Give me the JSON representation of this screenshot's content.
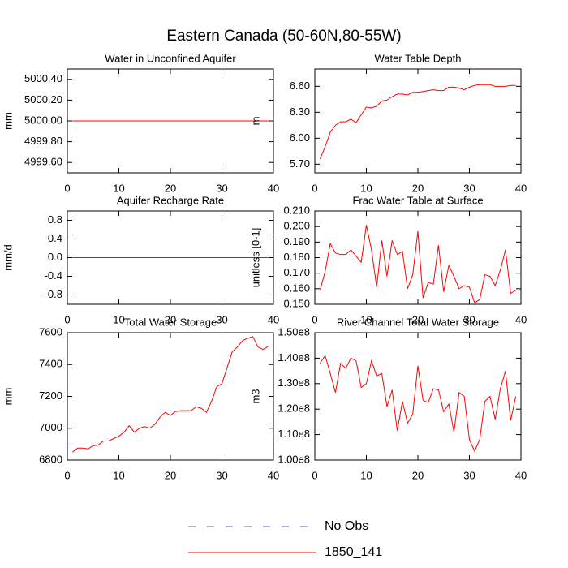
{
  "title": "Eastern Canada (50-60N,80-55W)",
  "legend": [
    {
      "name": "No Obs",
      "color": "#5a5ad0",
      "dash": true
    },
    {
      "name": "1850_141",
      "color": "#ff0000"
    }
  ],
  "chart_data": [
    {
      "type": "line",
      "title": "Water in Unconfined Aquifer",
      "ylabel": "mm",
      "color": "#ff0000",
      "x": [
        1,
        2,
        3,
        4,
        5,
        6,
        7,
        8,
        9,
        10,
        11,
        12,
        13,
        14,
        15,
        16,
        17,
        18,
        19,
        20,
        21,
        22,
        23,
        24,
        25,
        26,
        27,
        28,
        29,
        30,
        31,
        32,
        33,
        34,
        35,
        36,
        37,
        38,
        39
      ],
      "values": [
        5000,
        5000,
        5000,
        5000,
        5000,
        5000,
        5000,
        5000,
        5000,
        5000,
        5000,
        5000,
        5000,
        5000,
        5000,
        5000,
        5000,
        5000,
        5000,
        5000,
        5000,
        5000,
        5000,
        5000,
        5000,
        5000,
        5000,
        5000,
        5000,
        5000,
        5000,
        5000,
        5000,
        5000,
        5000,
        5000,
        5000,
        5000,
        5000
      ],
      "xlim": [
        0,
        40
      ],
      "xticks": [
        0,
        10,
        20,
        30,
        40
      ],
      "ylim": [
        4999.5,
        5000.5
      ],
      "yticks": [
        {
          "value": 4999.6,
          "label": "4999.60"
        },
        {
          "value": 4999.8,
          "label": "4999.80"
        },
        {
          "value": 5000,
          "label": "5000.00"
        },
        {
          "value": 5000.2,
          "label": "5000.20"
        },
        {
          "value": 5000.4,
          "label": "5000.40"
        }
      ]
    },
    {
      "type": "line",
      "title": "Water Table Depth",
      "ylabel": "m",
      "color": "#ff0000",
      "x": [
        1,
        2,
        3,
        4,
        5,
        6,
        7,
        8,
        9,
        10,
        11,
        12,
        13,
        14,
        15,
        16,
        17,
        18,
        19,
        20,
        21,
        22,
        23,
        24,
        25,
        26,
        27,
        28,
        29,
        30,
        31,
        32,
        33,
        34,
        35,
        36,
        37,
        38,
        39
      ],
      "values": [
        5.76,
        5.9,
        6.07,
        6.15,
        6.19,
        6.19,
        6.22,
        6.18,
        6.27,
        6.36,
        6.35,
        6.37,
        6.43,
        6.44,
        6.48,
        6.51,
        6.51,
        6.5,
        6.53,
        6.53,
        6.54,
        6.55,
        6.56,
        6.55,
        6.55,
        6.59,
        6.59,
        6.58,
        6.56,
        6.59,
        6.61,
        6.62,
        6.62,
        6.62,
        6.6,
        6.6,
        6.6,
        6.61,
        6.61
      ],
      "xlim": [
        0,
        40
      ],
      "xticks": [
        0,
        10,
        20,
        30,
        40
      ],
      "ylim": [
        5.6,
        6.8
      ],
      "yticks": [
        {
          "value": 5.7,
          "label": "5.70"
        },
        {
          "value": 6,
          "label": "6.00"
        },
        {
          "value": 6.3,
          "label": "6.30"
        },
        {
          "value": 6.6,
          "label": "6.60"
        }
      ]
    },
    {
      "type": "line",
      "title": "Aquifer Recharge Rate",
      "ylabel": "mm/d",
      "color": "#ff0000",
      "x": [
        1,
        2,
        3,
        4,
        5,
        6,
        7,
        8,
        9,
        10,
        11,
        12,
        13,
        14,
        15,
        16,
        17,
        18,
        19,
        20,
        21,
        22,
        23,
        24,
        25,
        26,
        27,
        28,
        29,
        30,
        31,
        32,
        33,
        34,
        35,
        36,
        37,
        38,
        39
      ],
      "values": [
        0,
        0,
        0,
        0,
        0,
        0,
        0,
        0,
        0,
        0,
        0,
        0,
        0,
        0,
        0,
        0,
        0,
        0,
        0,
        0,
        0,
        0,
        0,
        0,
        0,
        0,
        0,
        0,
        0,
        0,
        0,
        0,
        0,
        0,
        0,
        0,
        0,
        0,
        0
      ],
      "xlim": [
        0,
        40
      ],
      "xticks": [
        0,
        10,
        20,
        30,
        40
      ],
      "ylim": [
        -1,
        1
      ],
      "yticks": [
        -0.8,
        -0.4,
        {
          "value": 0,
          "label": "0.0"
        },
        0.4,
        0.8
      ]
    },
    {
      "type": "line",
      "title": "Frac Water Table at Surface",
      "ylabel": "unitless [0-1]",
      "color": "#ff0000",
      "x": [
        1,
        2,
        3,
        4,
        5,
        6,
        7,
        8,
        9,
        10,
        11,
        12,
        13,
        14,
        15,
        16,
        17,
        18,
        19,
        20,
        21,
        22,
        23,
        24,
        25,
        26,
        27,
        28,
        29,
        30,
        31,
        32,
        33,
        34,
        35,
        36,
        37,
        38,
        39
      ],
      "values": [
        0.159,
        0.171,
        0.189,
        0.183,
        0.182,
        0.182,
        0.185,
        0.181,
        0.177,
        0.201,
        0.185,
        0.161,
        0.191,
        0.168,
        0.191,
        0.182,
        0.184,
        0.16,
        0.169,
        0.197,
        0.154,
        0.164,
        0.163,
        0.188,
        0.158,
        0.175,
        0.168,
        0.16,
        0.162,
        0.161,
        0.151,
        0.153,
        0.169,
        0.168,
        0.162,
        0.172,
        0.185,
        0.157,
        0.159
      ],
      "xlim": [
        0,
        40
      ],
      "xticks": [
        0,
        10,
        20,
        30,
        40
      ],
      "ylim": [
        0.15,
        0.21
      ],
      "yticks": [
        {
          "value": 0.15,
          "label": "0.150"
        },
        {
          "value": 0.16,
          "label": "0.160"
        },
        {
          "value": 0.17,
          "label": "0.170"
        },
        {
          "value": 0.18,
          "label": "0.180"
        },
        {
          "value": 0.19,
          "label": "0.190"
        },
        {
          "value": 0.2,
          "label": "0.200"
        },
        {
          "value": 0.21,
          "label": "0.210"
        }
      ]
    },
    {
      "type": "line",
      "title": "Total Water Storage",
      "ylabel": "mm",
      "color": "#ff0000",
      "x": [
        1,
        2,
        3,
        4,
        5,
        6,
        7,
        8,
        9,
        10,
        11,
        12,
        13,
        14,
        15,
        16,
        17,
        18,
        19,
        20,
        21,
        22,
        23,
        24,
        25,
        26,
        27,
        28,
        29,
        30,
        31,
        32,
        33,
        34,
        35,
        36,
        37,
        38,
        39
      ],
      "values": [
        6850,
        6875,
        6875,
        6870,
        6890,
        6895,
        6920,
        6920,
        6935,
        6950,
        6975,
        7015,
        6975,
        7000,
        7010,
        7000,
        7025,
        7070,
        7100,
        7080,
        7105,
        7110,
        7110,
        7110,
        7135,
        7125,
        7100,
        7170,
        7260,
        7280,
        7380,
        7480,
        7510,
        7550,
        7565,
        7575,
        7510,
        7495,
        7515
      ],
      "xlim": [
        0,
        40
      ],
      "xticks": [
        0,
        10,
        20,
        30,
        40
      ],
      "ylim": [
        6800,
        7600
      ],
      "yticks": [
        6800,
        7000,
        7200,
        7400,
        7600
      ]
    },
    {
      "type": "line",
      "title": "River Channel Total Water Storage",
      "ylabel": "m3",
      "color": "#ff0000",
      "x": [
        1,
        2,
        3,
        4,
        5,
        6,
        7,
        8,
        9,
        10,
        11,
        12,
        13,
        14,
        15,
        16,
        17,
        18,
        19,
        20,
        21,
        22,
        23,
        24,
        25,
        26,
        27,
        28,
        29,
        30,
        31,
        32,
        33,
        34,
        35,
        36,
        37,
        38,
        39
      ],
      "values": [
        138000000,
        141000000,
        134000000,
        126500000,
        138000000,
        136000000,
        140000000,
        139000000,
        128500000,
        130000000,
        139000000,
        133000000,
        134000000,
        121000000,
        127500000,
        111500000,
        123000000,
        114500000,
        118000000,
        137000000,
        123500000,
        122500000,
        128000000,
        127500000,
        119000000,
        122000000,
        111000000,
        126500000,
        125000000,
        108000000,
        103500000,
        108000000,
        123000000,
        125000000,
        116000000,
        128000000,
        135000000,
        115500000,
        125000000
      ],
      "xlim": [
        0,
        40
      ],
      "xticks": [
        0,
        10,
        20,
        30,
        40
      ],
      "ylim": [
        100000000,
        150000000
      ],
      "yticks": [
        {
          "value": 100000000,
          "label": "1.00e8"
        },
        {
          "value": 110000000,
          "label": "1.10e8"
        },
        {
          "value": 120000000,
          "label": "1.20e8"
        },
        {
          "value": 130000000,
          "label": "1.30e8"
        },
        {
          "value": 140000000,
          "label": "1.40e8"
        },
        {
          "value": 150000000,
          "label": "1.50e8"
        }
      ]
    }
  ]
}
